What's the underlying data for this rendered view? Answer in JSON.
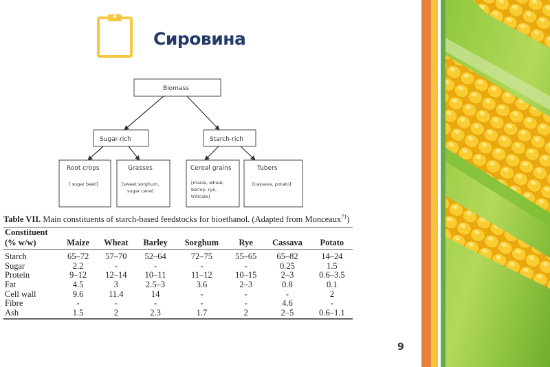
{
  "slide": {
    "title": "Сировина",
    "title_icon": "clipboard-icon",
    "page_number": "9",
    "colors": {
      "title": "#243a68",
      "icon": "#f5c842",
      "stripe_orange": "#e8813a",
      "stripe_yellow": "#f7c33c",
      "stripe_green": "#6aa84f"
    }
  },
  "diagram": {
    "root": "Biomass",
    "branches": [
      {
        "label": "Sugar-rich",
        "children": [
          {
            "label": "Root crops",
            "detail": [
              "[ sugar beet]"
            ]
          },
          {
            "label": "Grasses",
            "detail": [
              "[sweet sorghum,",
              "sugar cane]"
            ]
          }
        ]
      },
      {
        "label": "Starch-rich",
        "children": [
          {
            "label": "Cereal grains",
            "detail": [
              "[maize, wheat,",
              "barley, rye,",
              "triticale]"
            ]
          },
          {
            "label": "Tubers",
            "detail": [
              "[cassava, potato]"
            ]
          }
        ]
      }
    ]
  },
  "table": {
    "caption_bold": "Table VII.",
    "caption_text": " Main constituents of starch-based feedstocks for bioethanol. (Adapted from Monceaux",
    "caption_sup": "71",
    "caption_end": ")",
    "header_first_line1": "Constituent",
    "header_first_line2": "(% w/w)",
    "columns": [
      "Maize",
      "Wheat",
      "Barley",
      "Sorghum",
      "Rye",
      "Cassava",
      "Potato"
    ],
    "rows": [
      {
        "label": "Starch",
        "values": [
          "65–72",
          "57–70",
          "52–64",
          "72–75",
          "55–65",
          "65–82",
          "14–24"
        ]
      },
      {
        "label": "Sugar",
        "values": [
          "2.2",
          "-",
          "-",
          "-",
          "-",
          "0.25",
          "1.5"
        ]
      },
      {
        "label": "Protein",
        "values": [
          "9–12",
          "12–14",
          "10–11",
          "11–12",
          "10–15",
          "2–3",
          "0.6–3.5"
        ]
      },
      {
        "label": "Fat",
        "values": [
          "4.5",
          "3",
          "2.5–3",
          "3.6",
          "2–3",
          "0.8",
          "0.1"
        ]
      },
      {
        "label": "Cell wall",
        "values": [
          "9.6",
          "11.4",
          "14",
          "-",
          "-",
          "-",
          "2"
        ]
      },
      {
        "label": "Fibre",
        "values": [
          "-",
          "-",
          "-",
          "-",
          "-",
          "4.6",
          "-"
        ]
      },
      {
        "label": "Ash",
        "values": [
          "1.5",
          "2",
          "2.3",
          "1.7",
          "2",
          "2–5",
          "0.6–1.1"
        ]
      }
    ]
  }
}
